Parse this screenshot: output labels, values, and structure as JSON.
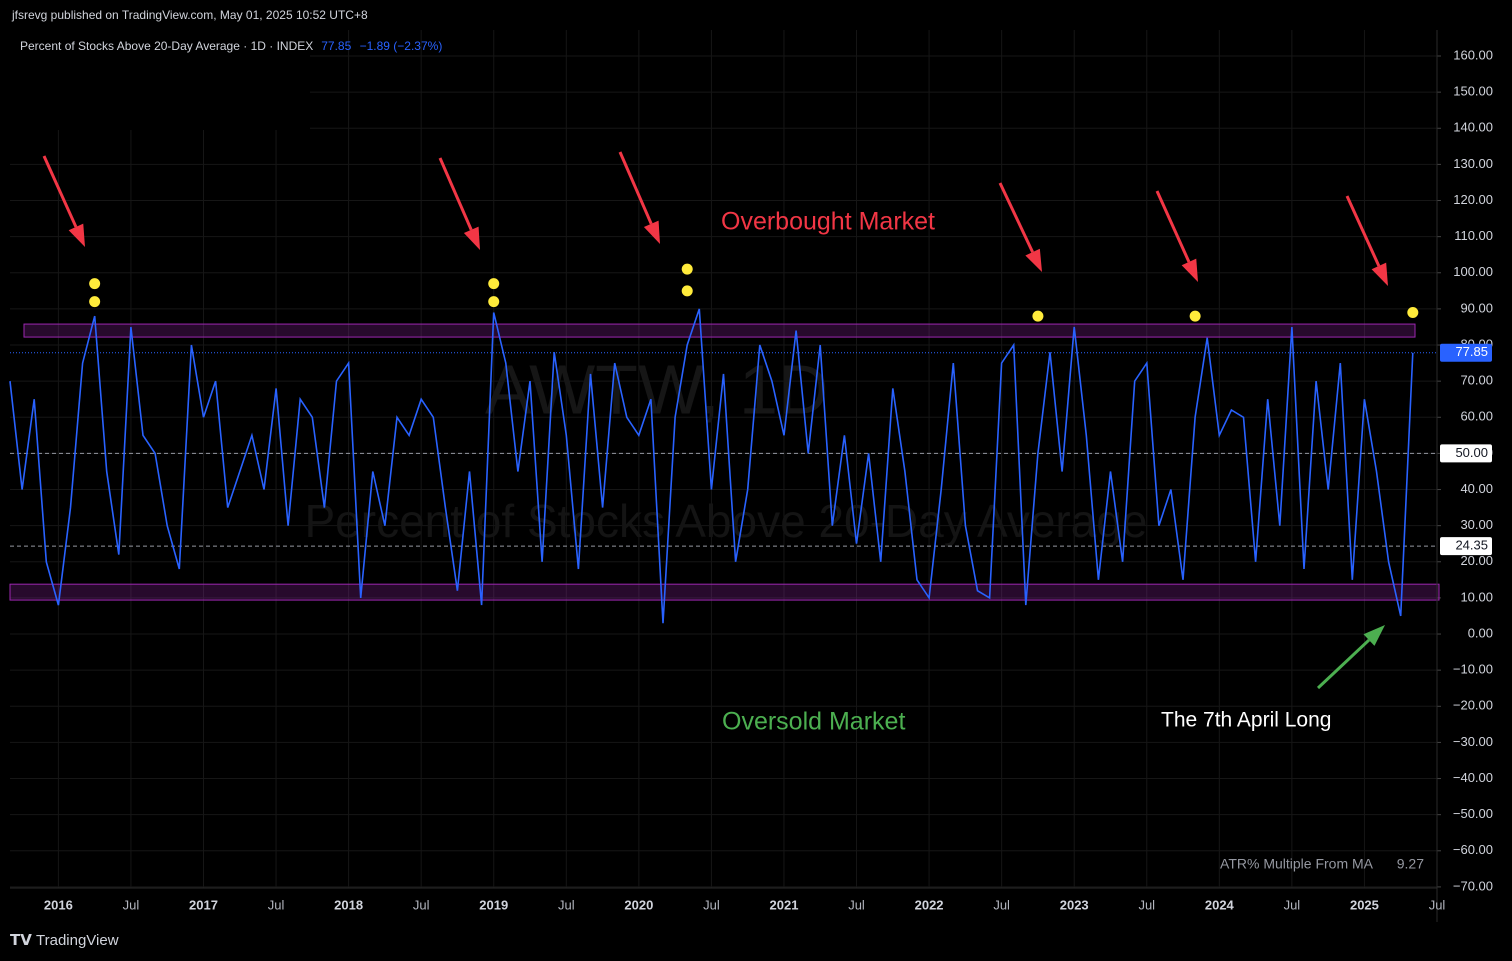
{
  "chart_data": {
    "type": "line",
    "publisher": "jfsrevg published on TradingView.com, May 01, 2025 10:52 UTC+8",
    "title": "Percent of Stocks Above 20-Day Average · 1D · INDEX",
    "change": "−1.89 (−2.37%)",
    "watermark": [
      "AWTW, 1D",
      "Percent of Stocks Above 20-Day Average"
    ],
    "brand": "TradingView",
    "indicator": {
      "name": "ATR% Multiple From MA",
      "value": 9.27
    },
    "annotations": [
      {
        "text": "Overbought Market",
        "color": "#f23645"
      },
      {
        "text": "Oversold Market",
        "color": "#4caf50"
      },
      {
        "text": "The 7th April Long",
        "color": "#ffffff"
      }
    ],
    "grid": true,
    "xlim": [
      "2015-09",
      "2025-07"
    ],
    "xticks": [
      {
        "value": "2016-01",
        "label": "2016"
      },
      {
        "value": "2016-07",
        "label": "Jul"
      },
      {
        "value": "2017-01",
        "label": "2017"
      },
      {
        "value": "2017-07",
        "label": "Jul"
      },
      {
        "value": "2018-01",
        "label": "2018"
      },
      {
        "value": "2018-07",
        "label": "Jul"
      },
      {
        "value": "2019-01",
        "label": "2019"
      },
      {
        "value": "2019-07",
        "label": "Jul"
      },
      {
        "value": "2020-01",
        "label": "2020"
      },
      {
        "value": "2020-07",
        "label": "Jul"
      },
      {
        "value": "2021-01",
        "label": "2021"
      },
      {
        "value": "2021-07",
        "label": "Jul"
      },
      {
        "value": "2022-01",
        "label": "2022"
      },
      {
        "value": "2022-07",
        "label": "Jul"
      },
      {
        "value": "2023-01",
        "label": "2023"
      },
      {
        "value": "2023-07",
        "label": "Jul"
      },
      {
        "value": "2024-01",
        "label": "2024"
      },
      {
        "value": "2024-07",
        "label": "Jul"
      },
      {
        "value": "2025-01",
        "label": "2025"
      },
      {
        "value": "2025-07",
        "label": "Jul"
      }
    ],
    "ylim": [
      -70.3,
      167.2
    ],
    "yticks": [
      {
        "value": 160,
        "label": "160.00"
      },
      {
        "value": 150,
        "label": "150.00"
      },
      {
        "value": 140,
        "label": "140.00"
      },
      {
        "value": 130,
        "label": "130.00"
      },
      {
        "value": 120,
        "label": "120.00"
      },
      {
        "value": 110,
        "label": "110.00"
      },
      {
        "value": 100,
        "label": "100.00"
      },
      {
        "value": 90,
        "label": "90.00"
      },
      {
        "value": 80,
        "label": "80.00"
      },
      {
        "value": 70,
        "label": "70.00"
      },
      {
        "value": 60,
        "label": "60.00"
      },
      {
        "value": 50,
        "label": "50.00"
      },
      {
        "value": 40,
        "label": "40.00"
      },
      {
        "value": 30,
        "label": "30.00"
      },
      {
        "value": 20,
        "label": "20.00"
      },
      {
        "value": 10,
        "label": "10.00"
      },
      {
        "value": 0,
        "label": "0.00"
      },
      {
        "value": -10,
        "label": "−10.00"
      },
      {
        "value": -20,
        "label": "−20.00"
      },
      {
        "value": -30,
        "label": "−30.00"
      },
      {
        "value": -40,
        "label": "−40.00"
      },
      {
        "value": -50,
        "label": "−50.00"
      },
      {
        "value": -60,
        "label": "−60.00"
      },
      {
        "value": -70,
        "label": "−70.00"
      }
    ],
    "bands": [
      {
        "from": 82.2,
        "to": 85.8
      },
      {
        "from": 9.4,
        "to": 13.8
      }
    ],
    "hlines": [
      {
        "value": 50,
        "label": "50.00"
      },
      {
        "value": 24.35,
        "label": "24.35"
      }
    ],
    "series": [
      {
        "color": "#2962ff",
        "x": [
          "2015-09",
          "2015-10",
          "2015-11",
          "2015-12",
          "2016-01",
          "2016-02",
          "2016-03",
          "2016-04",
          "2016-05",
          "2016-06",
          "2016-07",
          "2016-08",
          "2016-09",
          "2016-10",
          "2016-11",
          "2016-12",
          "2017-01",
          "2017-02",
          "2017-03",
          "2017-04",
          "2017-05",
          "2017-06",
          "2017-07",
          "2017-08",
          "2017-09",
          "2017-10",
          "2017-11",
          "2017-12",
          "2018-01",
          "2018-02",
          "2018-03",
          "2018-04",
          "2018-05",
          "2018-06",
          "2018-07",
          "2018-08",
          "2018-09",
          "2018-10",
          "2018-11",
          "2018-12",
          "2019-01",
          "2019-02",
          "2019-03",
          "2019-04",
          "2019-05",
          "2019-06",
          "2019-07",
          "2019-08",
          "2019-09",
          "2019-10",
          "2019-11",
          "2019-12",
          "2020-01",
          "2020-02",
          "2020-03",
          "2020-04",
          "2020-05",
          "2020-06",
          "2020-07",
          "2020-08",
          "2020-09",
          "2020-10",
          "2020-11",
          "2020-12",
          "2021-01",
          "2021-02",
          "2021-03",
          "2021-04",
          "2021-05",
          "2021-06",
          "2021-07",
          "2021-08",
          "2021-09",
          "2021-10",
          "2021-11",
          "2021-12",
          "2022-01",
          "2022-02",
          "2022-03",
          "2022-04",
          "2022-05",
          "2022-06",
          "2022-07",
          "2022-08",
          "2022-09",
          "2022-10",
          "2022-11",
          "2022-12",
          "2023-01",
          "2023-02",
          "2023-03",
          "2023-04",
          "2023-05",
          "2023-06",
          "2023-07",
          "2023-08",
          "2023-09",
          "2023-10",
          "2023-11",
          "2023-12",
          "2024-01",
          "2024-02",
          "2024-03",
          "2024-04",
          "2024-05",
          "2024-06",
          "2024-07",
          "2024-08",
          "2024-09",
          "2024-10",
          "2024-11",
          "2024-12",
          "2025-01",
          "2025-02",
          "2025-03",
          "2025-04",
          "2025-05"
        ],
        "values": [
          70,
          40,
          65,
          20,
          8,
          35,
          75,
          88,
          45,
          22,
          85,
          55,
          50,
          30,
          18,
          80,
          60,
          70,
          35,
          45,
          55,
          40,
          68,
          30,
          65,
          60,
          35,
          70,
          75,
          10,
          45,
          30,
          60,
          55,
          65,
          60,
          35,
          12,
          45,
          8,
          89,
          75,
          45,
          70,
          20,
          78,
          55,
          18,
          72,
          35,
          75,
          60,
          55,
          65,
          3,
          60,
          80,
          90,
          40,
          72,
          20,
          40,
          80,
          70,
          55,
          84,
          50,
          80,
          30,
          55,
          25,
          50,
          20,
          68,
          45,
          15,
          10,
          40,
          75,
          30,
          12,
          10,
          75,
          80,
          8,
          50,
          78,
          45,
          85,
          55,
          15,
          45,
          20,
          70,
          75,
          30,
          40,
          15,
          60,
          82,
          55,
          62,
          60,
          20,
          65,
          30,
          85,
          18,
          70,
          40,
          75,
          15,
          65,
          45,
          20,
          5,
          77.85
        ]
      }
    ],
    "markers": {
      "color": "#ffeb3b",
      "x": [
        "2016-04",
        "2016-04",
        "2019-01",
        "2019-01",
        "2020-05",
        "2020-05",
        "2022-10",
        "2023-11",
        "2025-05"
      ],
      "values": [
        92,
        97,
        92,
        97,
        95,
        101,
        88,
        88,
        89
      ]
    }
  }
}
